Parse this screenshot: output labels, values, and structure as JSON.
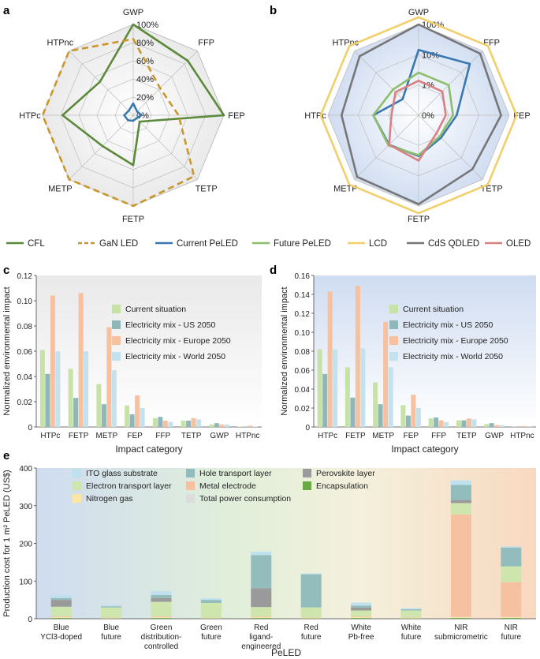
{
  "panel_labels": {
    "a": "a",
    "b": "b",
    "c": "c",
    "d": "d",
    "e": "e"
  },
  "radar_legend": [
    {
      "name": "CFL",
      "color": "#5b8a3a",
      "dash": false
    },
    {
      "name": "GaN LED",
      "color": "#c9962a",
      "dash": true
    },
    {
      "name": "Current PeLED",
      "color": "#3a78b0",
      "dash": false
    },
    {
      "name": "Future PeLED",
      "color": "#8cbd6a",
      "dash": false
    },
    {
      "name": "LCD",
      "color": "#f2cf6a",
      "dash": false
    },
    {
      "name": "CdS QDLED",
      "color": "#777777",
      "dash": false
    },
    {
      "name": "OLED",
      "color": "#d98080",
      "dash": false
    }
  ],
  "chart_data": [
    {
      "id": "a",
      "type": "radar",
      "axes": [
        "GWP",
        "FFP",
        "FEP",
        "TETP",
        "FETP",
        "METP",
        "HTPc",
        "HTPnc"
      ],
      "ring_labels": [
        "0%",
        "20%",
        "40%",
        "60%",
        "80%",
        "100%"
      ],
      "ring_values": [
        0,
        20,
        40,
        60,
        80,
        100
      ],
      "rmax": 100,
      "series": [
        {
          "name": "CFL",
          "color": "#5b8a3a",
          "dash": false,
          "values": [
            100,
            85,
            100,
            10,
            55,
            48,
            78,
            52
          ]
        },
        {
          "name": "GaN LED",
          "color": "#c9962a",
          "dash": true,
          "values": [
            84,
            42,
            50,
            95,
            100,
            100,
            100,
            100
          ]
        },
        {
          "name": "Current PeLED",
          "color": "#3a78b0",
          "dash": false,
          "values": [
            13,
            6,
            9,
            5,
            6,
            8,
            10,
            7
          ]
        }
      ]
    },
    {
      "id": "b",
      "type": "radar",
      "scale": "log",
      "axes": [
        "GWP",
        "FFP",
        "FEP",
        "TETP",
        "FETP",
        "METP",
        "HTPc",
        "HTPnc"
      ],
      "ring_labels": [
        "0%",
        "1%",
        "10%",
        "100%"
      ],
      "ring_positions": [
        0,
        0.333,
        0.667,
        1.0
      ],
      "series": [
        {
          "name": "LCD",
          "color": "#f2cf6a",
          "values": [
            1.08,
            1.08,
            1.08,
            1.08,
            1.08,
            1.08,
            1.08,
            1.08
          ]
        },
        {
          "name": "CdS QDLED",
          "color": "#777777",
          "values": [
            1.0,
            0.96,
            0.91,
            0.84,
            0.98,
            0.96,
            0.85,
            0.92
          ]
        },
        {
          "name": "Current PeLED",
          "color": "#3a78b0",
          "values": [
            0.72,
            0.8,
            0.42,
            0.35,
            0.45,
            0.46,
            0.5,
            0.25
          ]
        },
        {
          "name": "Future PeLED",
          "color": "#8cbd6a",
          "values": [
            0.47,
            0.47,
            0.38,
            0.33,
            0.44,
            0.47,
            0.5,
            0.4
          ]
        },
        {
          "name": "OLED",
          "color": "#d98080",
          "values": [
            0.38,
            0.37,
            0.3,
            0.28,
            0.5,
            0.46,
            0.3,
            0.36
          ]
        }
      ]
    },
    {
      "id": "c",
      "type": "bar",
      "categories": [
        "HTPc",
        "FETP",
        "METP",
        "FEP",
        "FFP",
        "TETP",
        "GWP",
        "HTPnc"
      ],
      "ylim": [
        0,
        0.12
      ],
      "yticks": [
        "0",
        "0.02",
        "0.04",
        "0.06",
        "0.08",
        "0.10",
        "0.12"
      ],
      "ytick_values": [
        0,
        0.02,
        0.04,
        0.06,
        0.08,
        0.1,
        0.12
      ],
      "xlabel": "Impact category",
      "ylabel": "Normalized environmental impact",
      "series": [
        {
          "name": "Current situation",
          "color": "#c7e2a6",
          "values": [
            0.061,
            0.046,
            0.034,
            0.017,
            0.007,
            0.005,
            0.002,
            0.0003
          ]
        },
        {
          "name": "Electricity mix - US 2050",
          "color": "#8fb6b8",
          "values": [
            0.042,
            0.023,
            0.018,
            0.01,
            0.008,
            0.005,
            0.003,
            0.0003
          ]
        },
        {
          "name": "Electricity mix - Europe 2050",
          "color": "#f6c1a1",
          "values": [
            0.104,
            0.106,
            0.079,
            0.025,
            0.005,
            0.007,
            0.002,
            0.001
          ]
        },
        {
          "name": "Electricity mix - World 2050",
          "color": "#c4e1ee",
          "values": [
            0.06,
            0.06,
            0.045,
            0.015,
            0.004,
            0.006,
            0.002,
            0.0003
          ]
        }
      ]
    },
    {
      "id": "d",
      "type": "bar",
      "categories": [
        "HTPc",
        "FETP",
        "METP",
        "FEP",
        "FFP",
        "TETP",
        "GWP",
        "HTPnc"
      ],
      "ylim": [
        0,
        0.16
      ],
      "yticks": [
        "0",
        "0.02",
        "0.04",
        "0.06",
        "0.08",
        "0.10",
        "0.12",
        "0.14",
        "0.16"
      ],
      "ytick_values": [
        0,
        0.02,
        0.04,
        0.06,
        0.08,
        0.1,
        0.12,
        0.14,
        0.16
      ],
      "xlabel": "Impact category",
      "ylabel": "Normalized environmental impact",
      "series": [
        {
          "name": "Current situation",
          "color": "#c7e2a6",
          "values": [
            0.082,
            0.063,
            0.047,
            0.023,
            0.009,
            0.007,
            0.003,
            0.0003
          ]
        },
        {
          "name": "Electricity mix - US 2050",
          "color": "#8fb6b8",
          "values": [
            0.056,
            0.031,
            0.024,
            0.012,
            0.01,
            0.007,
            0.004,
            0.0003
          ]
        },
        {
          "name": "Electricity mix - Europe 2050",
          "color": "#f6c1a1",
          "values": [
            0.143,
            0.149,
            0.111,
            0.034,
            0.007,
            0.009,
            0.002,
            0.001
          ]
        },
        {
          "name": "Electricity mix - World 2050",
          "color": "#c4e1ee",
          "values": [
            0.082,
            0.083,
            0.063,
            0.02,
            0.005,
            0.008,
            0.002,
            0.0003
          ]
        }
      ]
    },
    {
      "id": "e",
      "type": "stacked-bar",
      "categories": [
        [
          "Blue",
          "YCl3-doped"
        ],
        [
          "Blue",
          "future"
        ],
        [
          "Green",
          "distribution-",
          "controlled"
        ],
        [
          "Green",
          "future"
        ],
        [
          "Red",
          "ligand-",
          "engineered"
        ],
        [
          "Red",
          "future"
        ],
        [
          "White",
          "Pb-free"
        ],
        [
          "White",
          "future"
        ],
        [
          "NIR",
          "submicrometric"
        ],
        [
          "NIR",
          "future"
        ]
      ],
      "ylim": [
        0,
        400
      ],
      "yticks": [
        "0",
        "100",
        "200",
        "300",
        "400"
      ],
      "ytick_values": [
        0,
        100,
        200,
        300,
        400
      ],
      "xlabel": "PeLED",
      "ylabel": "Production cost for 1 m² PeLED (US$)",
      "series": [
        {
          "name": "Encapsulation",
          "color": "#6aaa45",
          "values": [
            2,
            1,
            2,
            1,
            2,
            1,
            2,
            1,
            2,
            2
          ]
        },
        {
          "name": "Nitrogen gas",
          "color": "#fbe6a2",
          "values": [
            2,
            1,
            2,
            1,
            2,
            1,
            2,
            1,
            2,
            2
          ]
        },
        {
          "name": "Total power consumption",
          "color": "#dcdcdc",
          "values": [
            1,
            1,
            1,
            1,
            1,
            1,
            1,
            1,
            1,
            1
          ]
        },
        {
          "name": "Metal electrode",
          "color": "#f6c1a1",
          "values": [
            2,
            1,
            2,
            1,
            2,
            1,
            2,
            1,
            272,
            92
          ]
        },
        {
          "name": "Electron transport layer",
          "color": "#cfe5ae",
          "values": [
            25,
            26,
            38,
            38,
            24,
            26,
            15,
            18,
            30,
            42
          ]
        },
        {
          "name": "Perovskite layer",
          "color": "#9a9a9a",
          "values": [
            18,
            0,
            10,
            0,
            50,
            0,
            8,
            0,
            8,
            0
          ]
        },
        {
          "name": "Hole transport layer",
          "color": "#93bcbc",
          "values": [
            5,
            3,
            8,
            8,
            88,
            88,
            5,
            3,
            40,
            50
          ]
        },
        {
          "name": "ITO glass substrate",
          "color": "#bfe0ef",
          "values": [
            8,
            3,
            10,
            4,
            9,
            2,
            8,
            3,
            12,
            3
          ]
        }
      ],
      "legend_order": [
        "ITO glass substrate",
        "Hole transport layer",
        "Perovskite layer",
        "Electron transport layer",
        "Metal electrode",
        "Encapsulation",
        "Nitrogen gas",
        "Total power consumption"
      ]
    }
  ]
}
